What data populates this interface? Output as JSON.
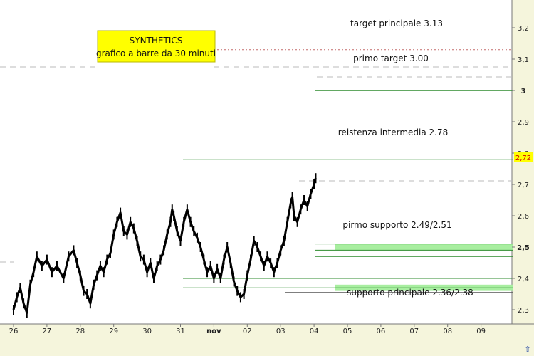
{
  "chart_data": {
    "type": "line",
    "title": "SYNTHETICS",
    "subtitle": "grafico a barre da 30 minuti",
    "x_categories": [
      "26",
      "27",
      "28",
      "29",
      "30",
      "31",
      "nov",
      "02",
      "03",
      "04",
      "05",
      "06",
      "07",
      "08",
      "09"
    ],
    "ylim": [
      2.2,
      3.22
    ],
    "y_ticks": [
      {
        "value": 2.3,
        "label": "2,3"
      },
      {
        "value": 2.4,
        "label": "2,4"
      },
      {
        "value": 2.5,
        "label": "2,5"
      },
      {
        "value": 2.6,
        "label": "2,6"
      },
      {
        "value": 2.7,
        "label": "2,7"
      },
      {
        "value": 2.8,
        "label": "2,8"
      },
      {
        "value": 2.9,
        "label": "2,9"
      },
      {
        "value": 3.0,
        "label": "3"
      },
      {
        "value": 3.1,
        "label": "3,1"
      },
      {
        "value": 3.2,
        "label": "3,2"
      }
    ],
    "last_price": {
      "value": 2.72,
      "label": "2,72"
    },
    "series": [
      {
        "values": [
          [
            0.0,
            2.3
          ],
          [
            0.1,
            2.34
          ],
          [
            0.2,
            2.37
          ],
          [
            0.3,
            2.32
          ],
          [
            0.4,
            2.29
          ],
          [
            0.5,
            2.38
          ],
          [
            0.6,
            2.42
          ],
          [
            0.7,
            2.47
          ],
          [
            0.85,
            2.44
          ],
          [
            1.0,
            2.46
          ],
          [
            1.15,
            2.42
          ],
          [
            1.3,
            2.44
          ],
          [
            1.5,
            2.4
          ],
          [
            1.65,
            2.47
          ],
          [
            1.8,
            2.49
          ],
          [
            1.9,
            2.45
          ],
          [
            2.0,
            2.41
          ],
          [
            2.1,
            2.36
          ],
          [
            2.2,
            2.35
          ],
          [
            2.3,
            2.32
          ],
          [
            2.4,
            2.38
          ],
          [
            2.5,
            2.41
          ],
          [
            2.6,
            2.44
          ],
          [
            2.7,
            2.42
          ],
          [
            2.8,
            2.46
          ],
          [
            2.9,
            2.48
          ],
          [
            3.0,
            2.54
          ],
          [
            3.1,
            2.58
          ],
          [
            3.2,
            2.61
          ],
          [
            3.3,
            2.55
          ],
          [
            3.4,
            2.54
          ],
          [
            3.5,
            2.58
          ],
          [
            3.6,
            2.56
          ],
          [
            3.7,
            2.52
          ],
          [
            3.8,
            2.47
          ],
          [
            3.9,
            2.46
          ],
          [
            4.0,
            2.42
          ],
          [
            4.1,
            2.45
          ],
          [
            4.2,
            2.4
          ],
          [
            4.3,
            2.44
          ],
          [
            4.4,
            2.46
          ],
          [
            4.5,
            2.49
          ],
          [
            4.6,
            2.54
          ],
          [
            4.7,
            2.58
          ],
          [
            4.75,
            2.62
          ],
          [
            4.8,
            2.6
          ],
          [
            4.9,
            2.55
          ],
          [
            5.0,
            2.52
          ],
          [
            5.1,
            2.58
          ],
          [
            5.2,
            2.62
          ],
          [
            5.3,
            2.58
          ],
          [
            5.4,
            2.55
          ],
          [
            5.5,
            2.53
          ],
          [
            5.6,
            2.5
          ],
          [
            5.7,
            2.46
          ],
          [
            5.8,
            2.42
          ],
          [
            5.9,
            2.44
          ],
          [
            6.0,
            2.4
          ],
          [
            6.1,
            2.43
          ],
          [
            6.2,
            2.4
          ],
          [
            6.3,
            2.46
          ],
          [
            6.4,
            2.5
          ],
          [
            6.5,
            2.45
          ],
          [
            6.6,
            2.39
          ],
          [
            6.7,
            2.36
          ],
          [
            6.8,
            2.34
          ],
          [
            6.9,
            2.35
          ],
          [
            7.0,
            2.41
          ],
          [
            7.1,
            2.46
          ],
          [
            7.2,
            2.52
          ],
          [
            7.3,
            2.5
          ],
          [
            7.4,
            2.47
          ],
          [
            7.5,
            2.44
          ],
          [
            7.6,
            2.47
          ],
          [
            7.7,
            2.45
          ],
          [
            7.8,
            2.42
          ],
          [
            7.9,
            2.45
          ],
          [
            8.0,
            2.49
          ],
          [
            8.1,
            2.52
          ],
          [
            8.2,
            2.58
          ],
          [
            8.3,
            2.64
          ],
          [
            8.35,
            2.66
          ],
          [
            8.4,
            2.6
          ],
          [
            8.5,
            2.58
          ],
          [
            8.6,
            2.62
          ],
          [
            8.7,
            2.65
          ],
          [
            8.8,
            2.63
          ],
          [
            8.9,
            2.67
          ],
          [
            9.0,
            2.7
          ],
          [
            9.05,
            2.72
          ]
        ]
      }
    ],
    "levels": [
      {
        "label": "target principale 3.13",
        "value": 3.13,
        "style": "dashed-red"
      },
      {
        "label": "primo target 3.00",
        "value": 3.0,
        "style": "solid-green"
      },
      {
        "label": "reistenza intermedia 2.78",
        "value": 2.78,
        "style": "solid-green"
      },
      {
        "label": "pirmo supporto 2.49/2.51",
        "value": 2.5,
        "style": "zone-green"
      },
      {
        "label": "supporto principale 2.36/2.38",
        "value": 2.37,
        "style": "zone-green"
      }
    ],
    "grid": false,
    "colors": {
      "price": "#000000",
      "level": "#2e8b2e",
      "zone": "#a8eea0",
      "target": "#c46a6a",
      "axis_bg": "#f5f5dc",
      "title_box": "#ffff00"
    }
  }
}
